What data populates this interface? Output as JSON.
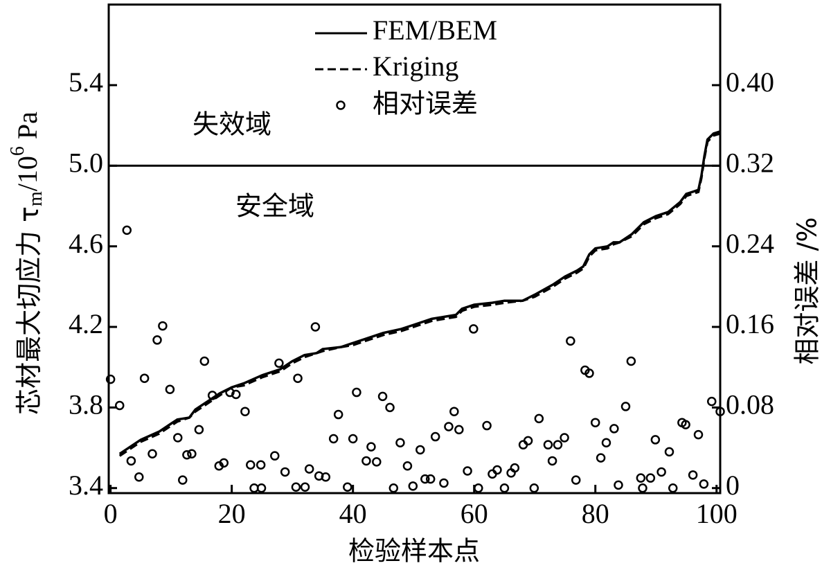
{
  "chart_data": {
    "type": "line",
    "xlabel": "检验样本点",
    "ylabel_parts": [
      "芯材最大切应力 τ",
      "m",
      "/10",
      "6",
      " Pa"
    ],
    "y2label": "相对误差 /%",
    "annotations": [
      "失效域",
      "安全域"
    ],
    "threshold": {
      "value": 5,
      "label": "5.0"
    },
    "xlim": [
      -0.3,
      100.6
    ],
    "xticks": [
      0,
      20,
      40,
      60,
      80,
      100
    ],
    "ylim": [
      3.375,
      5.8
    ],
    "yticks": [
      3.4,
      3.8,
      4.2,
      4.6,
      {
        "value": 5,
        "label": "5.0"
      },
      5.4
    ],
    "y2lim": [
      -0.005,
      0.48
    ],
    "y2ticks": [
      0,
      0.08,
      0.16,
      0.24,
      0.32,
      {
        "value": 0.4,
        "label": "0.40"
      }
    ],
    "series": [
      {
        "name": "FEM/BEM",
        "color": "#000",
        "dash": "none",
        "x": [
          1.5,
          3,
          5,
          8,
          10,
          11,
          13,
          14,
          16,
          18,
          20,
          22,
          25,
          28,
          30,
          32,
          34,
          35,
          38,
          40,
          43,
          45,
          48,
          50,
          53,
          55,
          57,
          58,
          60,
          63,
          65,
          68,
          70,
          73,
          75,
          77,
          78,
          79,
          80,
          82,
          83,
          84,
          86,
          88,
          90,
          92,
          94,
          95,
          96,
          97,
          97.5,
          98,
          98.5,
          99.5,
          100.6
        ],
        "values": [
          3.57,
          3.6,
          3.64,
          3.68,
          3.72,
          3.74,
          3.75,
          3.79,
          3.83,
          3.87,
          3.9,
          3.92,
          3.96,
          3.99,
          4.03,
          4.06,
          4.07,
          4.09,
          4.1,
          4.12,
          4.15,
          4.17,
          4.19,
          4.21,
          4.24,
          4.25,
          4.26,
          4.29,
          4.31,
          4.32,
          4.33,
          4.33,
          4.36,
          4.41,
          4.45,
          4.48,
          4.5,
          4.56,
          4.59,
          4.6,
          4.62,
          4.62,
          4.66,
          4.72,
          4.75,
          4.77,
          4.82,
          4.86,
          4.87,
          4.88,
          4.95,
          5.05,
          5.13,
          5.16,
          5.17
        ]
      },
      {
        "name": "Kriging",
        "color": "#000",
        "dash": "12 6",
        "x": [
          1.5,
          3,
          5,
          8,
          10,
          11,
          13,
          14,
          16,
          18,
          20,
          22,
          25,
          28,
          30,
          32,
          34,
          35,
          38,
          40,
          43,
          45,
          48,
          50,
          53,
          55,
          57,
          58,
          60,
          63,
          65,
          68,
          70,
          73,
          75,
          77,
          78,
          79,
          80,
          82,
          83,
          84,
          86,
          88,
          90,
          92,
          94,
          95,
          96,
          97,
          97.5,
          98,
          98.5,
          99.5,
          100.6
        ],
        "values": [
          3.56,
          3.59,
          3.63,
          3.67,
          3.71,
          3.73,
          3.75,
          3.78,
          3.82,
          3.86,
          3.9,
          3.91,
          3.95,
          3.98,
          4.02,
          4.05,
          4.07,
          4.08,
          4.1,
          4.11,
          4.14,
          4.16,
          4.18,
          4.2,
          4.23,
          4.24,
          4.25,
          4.28,
          4.3,
          4.31,
          4.32,
          4.33,
          4.35,
          4.4,
          4.44,
          4.47,
          4.49,
          4.55,
          4.58,
          4.59,
          4.61,
          4.62,
          4.65,
          4.71,
          4.74,
          4.76,
          4.81,
          4.85,
          4.86,
          4.87,
          4.94,
          5.04,
          5.12,
          5.15,
          5.16
        ]
      },
      {
        "name": "相对误差",
        "color": "#000",
        "kind": "scatter",
        "axis": "y2",
        "x": [
          0,
          1.5,
          2.7,
          3.4,
          4.7,
          5.6,
          6.9,
          7.7,
          8.6,
          9.8,
          11.1,
          11.9,
          12.6,
          13.4,
          14.6,
          15.5,
          16.8,
          17.9,
          18.7,
          19.7,
          20.7,
          22.2,
          23.1,
          23.7,
          24.8,
          24.9,
          27.1,
          27.8,
          28.8,
          30.6,
          30.9,
          32.1,
          32.8,
          33.8,
          34.4,
          35.5,
          36.8,
          37.6,
          39.1,
          40,
          40.6,
          42.2,
          43,
          43.9,
          44.9,
          46.1,
          46.7,
          47.8,
          49,
          49.9,
          51.1,
          51.9,
          52.8,
          53.6,
          55,
          55.8,
          56.7,
          57.5,
          58.9,
          59.9,
          60.7,
          62.1,
          63,
          63.8,
          65,
          66.1,
          66.7,
          68.1,
          68.9,
          69.9,
          70.7,
          72.2,
          72.9,
          73.8,
          74.9,
          75.9,
          76.8,
          78.3,
          79,
          80,
          80.9,
          81.8,
          83.1,
          83.8,
          85,
          85.9,
          87.5,
          87.8,
          89.1,
          89.9,
          90.9,
          92.2,
          92.8,
          94.3,
          94.9,
          96.1,
          97,
          97.9,
          99.2,
          100.6
        ],
        "values": [
          0.108,
          0.082,
          0.256,
          0.027,
          0.011,
          0.109,
          0.034,
          0.147,
          0.161,
          0.098,
          0.05,
          0.008,
          0.033,
          0.034,
          0.058,
          0.126,
          0.092,
          0.022,
          0.025,
          0.095,
          0.093,
          0.076,
          0.023,
          0,
          0.023,
          0,
          0.032,
          0.124,
          0.016,
          0.001,
          0.109,
          0.001,
          0.019,
          0.16,
          0.012,
          0.011,
          0.049,
          0.073,
          0.001,
          0.049,
          0.095,
          0.027,
          0.041,
          0.026,
          0.091,
          0.08,
          0,
          0.045,
          0.022,
          0.002,
          0.038,
          0.009,
          0.009,
          0.051,
          0.005,
          0.061,
          0.076,
          0.058,
          0.017,
          0.158,
          0,
          0.062,
          0.014,
          0.018,
          0,
          0.015,
          0.02,
          0.043,
          0.047,
          0,
          0.069,
          0.043,
          0.027,
          0.043,
          0.05,
          0.146,
          0.008,
          0.117,
          0.114,
          0.065,
          0.03,
          0.045,
          0.059,
          0.003,
          0.081,
          0.126,
          0.01,
          0,
          0.01,
          0.048,
          0.016,
          0.036,
          0,
          0.065,
          0.063,
          0.013,
          0.053,
          0.004,
          0.086,
          0.076
        ]
      }
    ]
  }
}
